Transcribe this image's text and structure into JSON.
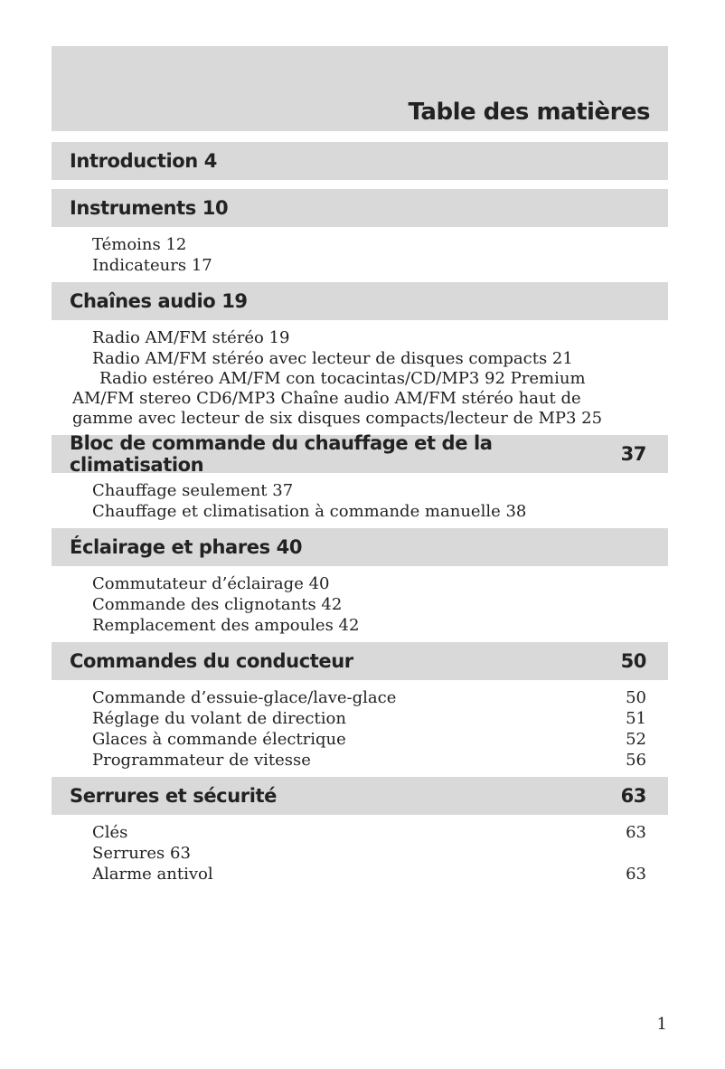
{
  "header": {
    "title": "Table des matières"
  },
  "sections": [
    {
      "title": "Introduction 4"
    },
    {
      "title": "Instruments 10",
      "items": [
        {
          "text": "Témoins 12"
        },
        {
          "text": "Indicateurs 17"
        }
      ]
    },
    {
      "title": "Chaînes audio 19",
      "items": [
        {
          "text": "Radio AM/FM stéréo 19"
        },
        {
          "text": "Radio AM/FM stéréo avec lecteur de disques compacts 21"
        },
        {
          "lines": [
            "Radio estéreo AM/FM con tocacintas/CD/MP3 92 Premium",
            "AM/FM stereo CD6/MP3 Chaîne audio AM/FM stéréo haut de",
            "gamme avec lecteur de six disques compacts/lecteur de MP3 25"
          ]
        }
      ]
    },
    {
      "title": "Bloc de commande du chauffage et de la climatisation",
      "page": "37",
      "items": [
        {
          "text": "Chauffage seulement 37"
        },
        {
          "text": "Chauffage et climatisation à commande manuelle 38"
        }
      ]
    },
    {
      "title": "Éclairage et phares 40",
      "items": [
        {
          "text": "Commutateur d’éclairage 40"
        },
        {
          "text": "Commande des clignotants 42"
        },
        {
          "text": "Remplacement des ampoules 42"
        }
      ]
    },
    {
      "title": "Commandes du conducteur",
      "page": "50",
      "items": [
        {
          "text": "Commande d’essuie-glace/lave-glace",
          "page": "50"
        },
        {
          "text": "Réglage du volant de direction",
          "page": "51"
        },
        {
          "text": "Glaces à commande électrique",
          "page": "52"
        },
        {
          "text": "Programmateur de vitesse",
          "page": "56"
        }
      ]
    },
    {
      "title": "Serrures et sécurité",
      "page": "63",
      "items": [
        {
          "text": "Clés",
          "page": "63"
        },
        {
          "text": "Serrures 63"
        },
        {
          "text": "Alarme antivol",
          "page": "63"
        }
      ]
    }
  ],
  "footer": {
    "page_number": "1"
  }
}
